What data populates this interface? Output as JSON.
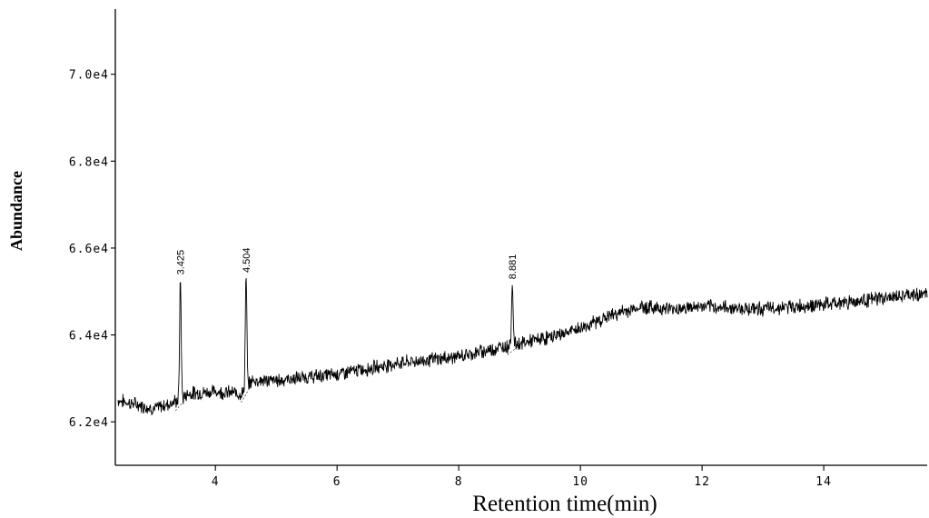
{
  "chart_data": {
    "type": "line",
    "title": "",
    "xlabel": "Retention time(min)",
    "ylabel": "Abundance",
    "xlim": [
      2.4,
      15.7
    ],
    "ylim": [
      61000,
      71500
    ],
    "x_ticks": [
      4,
      6,
      8,
      10,
      12,
      14
    ],
    "x_tick_labels": [
      "4",
      "6",
      "8",
      "10",
      "12",
      "14"
    ],
    "y_ticks": [
      62000,
      64000,
      66000,
      68000,
      70000
    ],
    "y_tick_labels": [
      "6.2e4",
      "6.4e4",
      "6.6e4",
      "6.8e4",
      "7.0e4"
    ],
    "grid": false,
    "legend": "none",
    "series": [
      {
        "points": [
          [
            2.4,
            62500
          ],
          [
            3.0,
            62300
          ],
          [
            3.3,
            62450
          ],
          [
            3.425,
            62500
          ],
          [
            3.55,
            62650
          ],
          [
            4.0,
            62700
          ],
          [
            4.45,
            62650
          ],
          [
            4.504,
            62750
          ],
          [
            4.6,
            62950
          ],
          [
            5.0,
            62950
          ],
          [
            6.0,
            63100
          ],
          [
            7.0,
            63350
          ],
          [
            8.0,
            63500
          ],
          [
            8.8,
            63750
          ],
          [
            8.881,
            63800
          ],
          [
            9.0,
            63800
          ],
          [
            9.5,
            63950
          ],
          [
            10.0,
            64150
          ],
          [
            10.5,
            64450
          ],
          [
            11.0,
            64650
          ],
          [
            11.5,
            64600
          ],
          [
            12.0,
            64650
          ],
          [
            13.0,
            64600
          ],
          [
            14.0,
            64700
          ],
          [
            15.0,
            64850
          ],
          [
            15.7,
            64950
          ]
        ]
      }
    ],
    "peaks": [
      {
        "rt": 3.425,
        "label": "3.425",
        "apex": 65300
      },
      {
        "rt": 4.504,
        "label": "4.504",
        "apex": 65350
      },
      {
        "rt": 8.881,
        "label": "8.881",
        "apex": 65200
      }
    ]
  }
}
